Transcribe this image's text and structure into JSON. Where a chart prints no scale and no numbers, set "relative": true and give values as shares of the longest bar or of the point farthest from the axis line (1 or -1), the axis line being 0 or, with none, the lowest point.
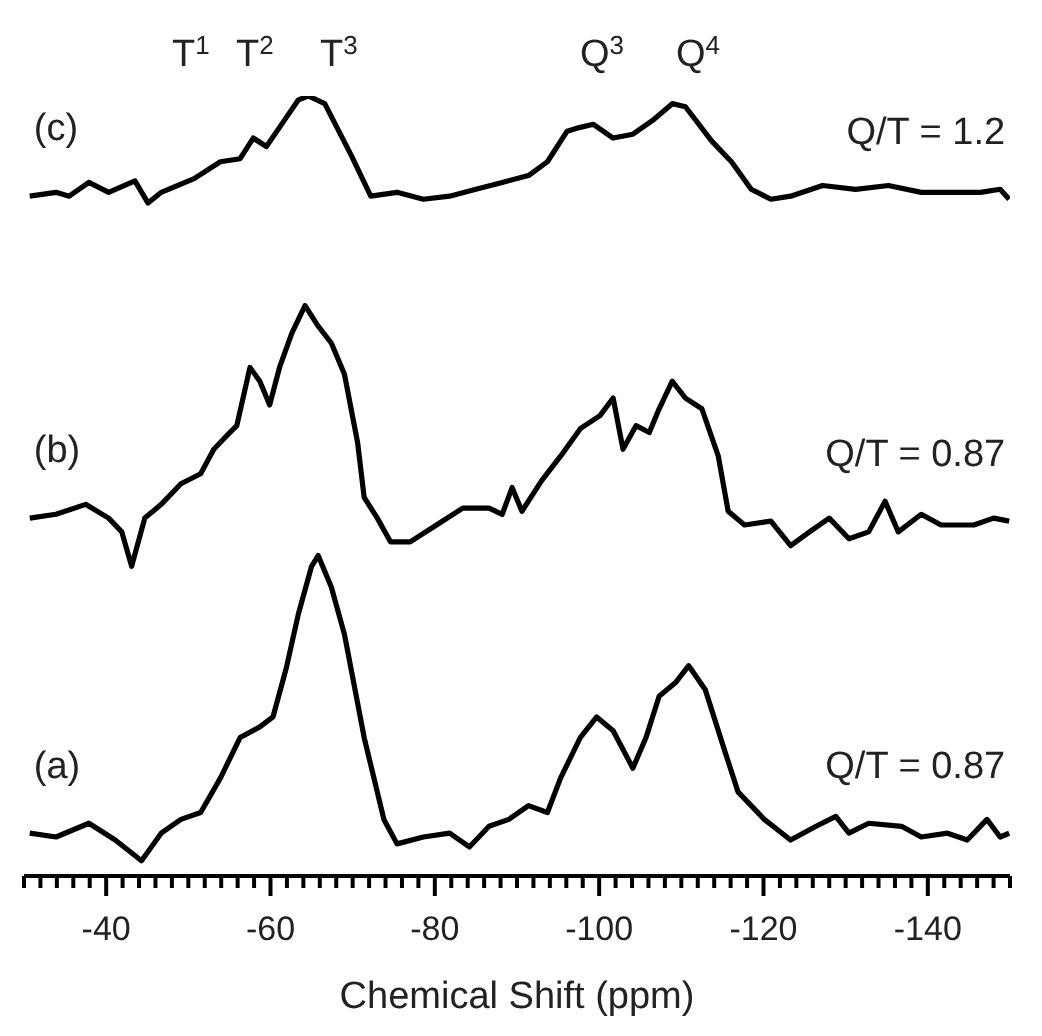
{
  "chart_data": {
    "type": "line",
    "relative": true,
    "xlabel": "Chemical Shift (ppm)",
    "xlim": [
      -30,
      -150
    ],
    "xticks": [
      {
        "value": -30,
        "label": null
      },
      {
        "value": -32,
        "label": null
      },
      {
        "value": -34,
        "label": null
      },
      {
        "value": -36,
        "label": null
      },
      {
        "value": -38,
        "label": null
      },
      -40,
      {
        "value": -42,
        "label": null
      },
      {
        "value": -44,
        "label": null
      },
      {
        "value": -46,
        "label": null
      },
      {
        "value": -48,
        "label": null
      },
      {
        "value": -50,
        "label": null
      },
      {
        "value": -52,
        "label": null
      },
      {
        "value": -54,
        "label": null
      },
      {
        "value": -56,
        "label": null
      },
      {
        "value": -58,
        "label": null
      },
      -60,
      {
        "value": -62,
        "label": null
      },
      {
        "value": -64,
        "label": null
      },
      {
        "value": -66,
        "label": null
      },
      {
        "value": -68,
        "label": null
      },
      {
        "value": -70,
        "label": null
      },
      {
        "value": -72,
        "label": null
      },
      {
        "value": -74,
        "label": null
      },
      {
        "value": -76,
        "label": null
      },
      {
        "value": -78,
        "label": null
      },
      -80,
      {
        "value": -82,
        "label": null
      },
      {
        "value": -84,
        "label": null
      },
      {
        "value": -86,
        "label": null
      },
      {
        "value": -88,
        "label": null
      },
      {
        "value": -90,
        "label": null
      },
      {
        "value": -92,
        "label": null
      },
      {
        "value": -94,
        "label": null
      },
      {
        "value": -96,
        "label": null
      },
      {
        "value": -98,
        "label": null
      },
      -100,
      {
        "value": -102,
        "label": null
      },
      {
        "value": -104,
        "label": null
      },
      {
        "value": -106,
        "label": null
      },
      {
        "value": -108,
        "label": null
      },
      {
        "value": -110,
        "label": null
      },
      {
        "value": -112,
        "label": null
      },
      {
        "value": -114,
        "label": null
      },
      {
        "value": -116,
        "label": null
      },
      {
        "value": -118,
        "label": null
      },
      -120,
      {
        "value": -122,
        "label": null
      },
      {
        "value": -124,
        "label": null
      },
      {
        "value": -126,
        "label": null
      },
      {
        "value": -128,
        "label": null
      },
      {
        "value": -130,
        "label": null
      },
      {
        "value": -132,
        "label": null
      },
      {
        "value": -134,
        "label": null
      },
      {
        "value": -136,
        "label": null
      },
      {
        "value": -138,
        "label": null
      },
      -140,
      {
        "value": -142,
        "label": null
      },
      {
        "value": -144,
        "label": null
      },
      {
        "value": -146,
        "label": null
      },
      {
        "value": -148,
        "label": null
      },
      {
        "value": -150,
        "label": null
      }
    ],
    "tick_labels": "x",
    "marker": "none",
    "line_style": "solid",
    "annotations": [
      "T$^{1}$",
      "T$^{2}$",
      "T$^{3}$",
      "Q$^{3}$",
      "Q$^{4}$",
      "Q/T = 1.2",
      "Q/T = 0.87",
      "Q/T = 0.87"
    ],
    "series": [
      {
        "name": "(c)",
        "color": "#000000",
        "x": [
          -30.7,
          -33.9,
          -35.5,
          -37.9,
          -40.3,
          -43.5,
          -45.1,
          -46.7,
          -50.7,
          -53.9,
          -56.3,
          -57.9,
          -59.5,
          -61.1,
          -63.4,
          -64.6,
          -66.6,
          -69.8,
          -72.2,
          -75.4,
          -78.6,
          -81.8,
          -85.0,
          -88.2,
          -91.4,
          -93.7,
          -96.1,
          -97.7,
          -99.3,
          -101.7,
          -104.1,
          -106.5,
          -108.9,
          -110.5,
          -113.7,
          -116.1,
          -118.5,
          -120.9,
          -123.3,
          -127.2,
          -131.2,
          -135.2,
          -139.2,
          -143.2,
          -146.4,
          -148.8,
          -149.9
        ],
        "values": [
          0.869,
          0.874,
          0.869,
          0.887,
          0.874,
          0.889,
          0.86,
          0.874,
          0.892,
          0.914,
          0.918,
          0.945,
          0.934,
          0.959,
          0.995,
          1.0,
          0.99,
          0.923,
          0.869,
          0.874,
          0.865,
          0.869,
          0.878,
          0.887,
          0.896,
          0.914,
          0.954,
          0.959,
          0.963,
          0.945,
          0.95,
          0.968,
          0.99,
          0.986,
          0.941,
          0.914,
          0.878,
          0.865,
          0.869,
          0.883,
          0.878,
          0.883,
          0.874,
          0.874,
          0.874,
          0.878,
          0.865
        ]
      },
      {
        "name": "(b)",
        "color": "#000000",
        "x": [
          -30.7,
          -33.9,
          -37.5,
          -40.3,
          -41.9,
          -43.1,
          -44.7,
          -46.7,
          -49.1,
          -51.5,
          -53.1,
          -54.7,
          -55.9,
          -57.5,
          -58.7,
          -59.9,
          -61.1,
          -62.6,
          -64.2,
          -65.8,
          -67.4,
          -69.0,
          -70.6,
          -71.4,
          -73.0,
          -74.6,
          -77.0,
          -80.2,
          -83.4,
          -86.6,
          -88.2,
          -89.4,
          -90.6,
          -93.0,
          -95.3,
          -97.7,
          -100.1,
          -101.7,
          -102.9,
          -104.5,
          -106.1,
          -107.3,
          -108.9,
          -110.5,
          -112.5,
          -114.5,
          -115.7,
          -117.7,
          -120.9,
          -123.3,
          -125.6,
          -128.0,
          -130.4,
          -132.8,
          -134.8,
          -136.4,
          -139.2,
          -141.6,
          -145.6,
          -148.0,
          -149.9
        ],
        "values": [
          0.448,
          0.453,
          0.466,
          0.448,
          0.43,
          0.385,
          0.448,
          0.466,
          0.493,
          0.506,
          0.538,
          0.556,
          0.569,
          0.645,
          0.627,
          0.596,
          0.645,
          0.69,
          0.726,
          0.699,
          0.677,
          0.636,
          0.547,
          0.475,
          0.448,
          0.417,
          0.417,
          0.439,
          0.461,
          0.461,
          0.453,
          0.488,
          0.457,
          0.497,
          0.529,
          0.565,
          0.582,
          0.605,
          0.538,
          0.569,
          0.56,
          0.591,
          0.627,
          0.605,
          0.591,
          0.529,
          0.457,
          0.439,
          0.444,
          0.412,
          0.43,
          0.448,
          0.421,
          0.43,
          0.47,
          0.43,
          0.453,
          0.439,
          0.439,
          0.448,
          0.444
        ]
      },
      {
        "name": "(a)",
        "color": "#000000",
        "x": [
          -30.7,
          -33.9,
          -37.9,
          -41.1,
          -44.3,
          -46.7,
          -49.1,
          -51.5,
          -53.9,
          -56.3,
          -58.7,
          -60.3,
          -61.9,
          -63.4,
          -65.0,
          -65.8,
          -67.4,
          -69.0,
          -71.4,
          -73.8,
          -75.4,
          -78.6,
          -81.8,
          -84.2,
          -86.6,
          -89.0,
          -91.4,
          -93.7,
          -95.3,
          -97.7,
          -99.7,
          -101.7,
          -104.1,
          -105.7,
          -107.3,
          -109.3,
          -110.9,
          -112.9,
          -115.3,
          -116.9,
          -120.1,
          -123.3,
          -126.4,
          -128.8,
          -130.4,
          -132.8,
          -136.8,
          -139.2,
          -142.4,
          -144.8,
          -147.2,
          -148.8,
          -149.9
        ],
        "values": [
          0.036,
          0.031,
          0.049,
          0.027,
          0.0,
          0.036,
          0.054,
          0.063,
          0.108,
          0.161,
          0.175,
          0.188,
          0.251,
          0.323,
          0.385,
          0.399,
          0.358,
          0.296,
          0.161,
          0.054,
          0.022,
          0.031,
          0.036,
          0.018,
          0.045,
          0.054,
          0.072,
          0.063,
          0.108,
          0.161,
          0.188,
          0.17,
          0.121,
          0.161,
          0.215,
          0.233,
          0.255,
          0.224,
          0.143,
          0.09,
          0.054,
          0.027,
          0.045,
          0.058,
          0.036,
          0.049,
          0.045,
          0.031,
          0.036,
          0.027,
          0.054,
          0.031,
          0.036
        ]
      }
    ]
  }
}
